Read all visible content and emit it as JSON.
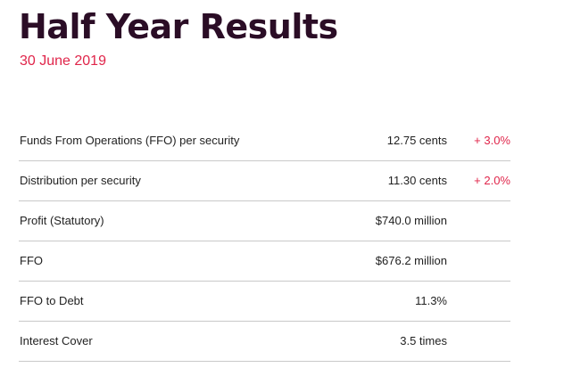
{
  "header": {
    "title": "Half Year Results",
    "subtitle": "30 June 2019"
  },
  "colors": {
    "title": "#2b0d26",
    "accent": "#e0254a",
    "text": "#222222",
    "divider": "#c9c9c9"
  },
  "results": [
    {
      "label": "Funds From Operations (FFO) per security",
      "value": "12.75 cents",
      "change": "+ 3.0%"
    },
    {
      "label": "Distribution per security",
      "value": "11.30 cents",
      "change": "+ 2.0%"
    },
    {
      "label": "Profit (Statutory)",
      "value": "$740.0 million",
      "change": ""
    },
    {
      "label": "FFO",
      "value": "$676.2 million",
      "change": ""
    },
    {
      "label": "FFO to Debt",
      "value": "11.3%",
      "change": ""
    },
    {
      "label": "Interest Cover",
      "value": "3.5 times",
      "change": ""
    }
  ]
}
